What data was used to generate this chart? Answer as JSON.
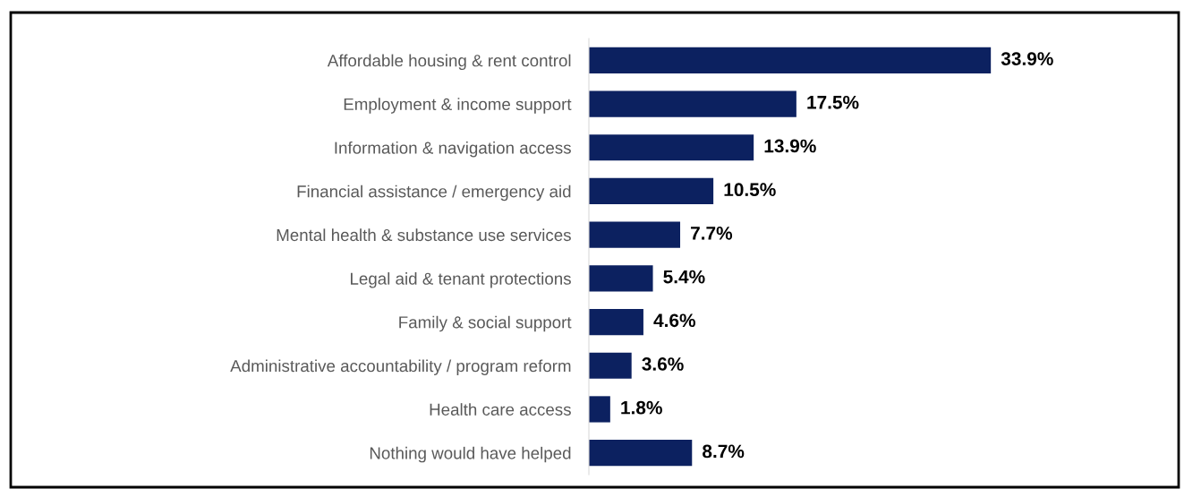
{
  "chart_data": {
    "type": "bar",
    "orientation": "horizontal",
    "categories": [
      "Affordable housing & rent control",
      "Employment & income support",
      "Information & navigation access",
      "Financial assistance / emergency aid",
      "Mental health & substance use services",
      "Legal aid & tenant protections",
      "Family & social support",
      "Administrative accountability / program reform",
      "Health care access",
      "Nothing would have helped"
    ],
    "values": [
      33.9,
      17.5,
      13.9,
      10.5,
      7.7,
      5.4,
      4.6,
      3.6,
      1.8,
      8.7
    ],
    "value_labels": [
      "33.9%",
      "17.5%",
      "13.9%",
      "10.5%",
      "7.7%",
      "5.4%",
      "4.6%",
      "3.6%",
      "1.8%",
      "8.7%"
    ],
    "color": "#0c2160",
    "grid": false,
    "legend": false,
    "tick_labels": "y"
  }
}
